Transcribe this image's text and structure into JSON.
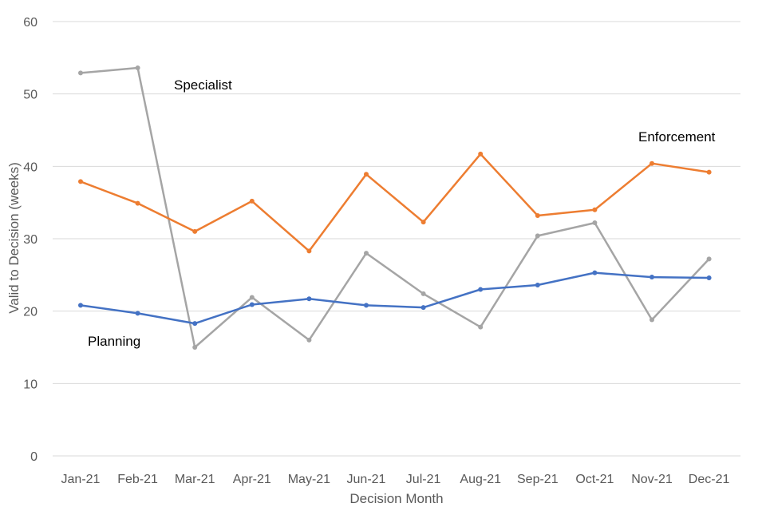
{
  "chart_data": {
    "type": "line",
    "title": "",
    "xlabel": "Decision Month",
    "ylabel": "Valid to Decision (weeks)",
    "ylim": [
      0,
      60
    ],
    "yticks": [
      0,
      10,
      20,
      30,
      40,
      50,
      60
    ],
    "grid": true,
    "legend": "none",
    "categories": [
      "Jan-21",
      "Feb-21",
      "Mar-21",
      "Apr-21",
      "May-21",
      "Jun-21",
      "Jul-21",
      "Aug-21",
      "Sep-21",
      "Oct-21",
      "Nov-21",
      "Dec-21"
    ],
    "series": [
      {
        "name": "Specialist",
        "color": "#a5a5a5",
        "values": [
          52.9,
          53.6,
          15.0,
          21.9,
          16.0,
          28.0,
          22.4,
          17.8,
          30.4,
          32.2,
          18.8,
          27.2
        ]
      },
      {
        "name": "Enforcement",
        "color": "#ed7d31",
        "values": [
          37.9,
          34.9,
          31.0,
          35.2,
          28.3,
          38.9,
          32.3,
          41.7,
          33.2,
          34.0,
          40.4,
          39.2
        ]
      },
      {
        "name": "Planning",
        "color": "#4472c4",
        "values": [
          20.8,
          19.7,
          18.3,
          20.9,
          21.7,
          20.8,
          20.5,
          23.0,
          23.6,
          25.3,
          24.7,
          24.6
        ]
      }
    ]
  }
}
